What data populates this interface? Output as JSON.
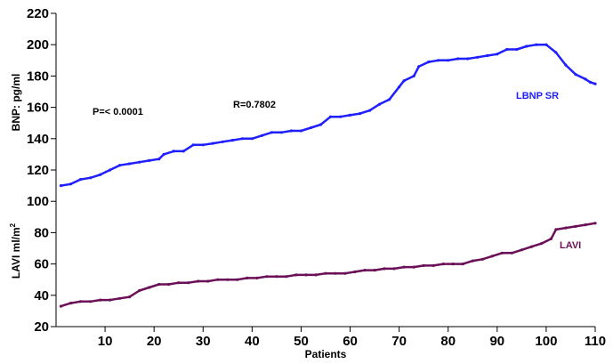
{
  "chart_data": {
    "type": "line",
    "xlabel": "Patients",
    "ylabel_upper": "BNP: pg/ml",
    "ylabel_lower_main": "LAVI ml/m",
    "ylabel_lower_sup": "2",
    "xlim": [
      0,
      110
    ],
    "ylim": [
      20,
      220
    ],
    "x_ticks": [
      10,
      20,
      30,
      40,
      50,
      60,
      70,
      80,
      90,
      100,
      110
    ],
    "y_ticks": [
      20,
      40,
      60,
      80,
      100,
      120,
      140,
      160,
      180,
      200,
      220
    ],
    "grid": false,
    "annotations": {
      "p_value": "P=< 0.0001",
      "r_value": "R=0.7802"
    },
    "series": [
      {
        "name": "LBNP SR",
        "color": "#1f1fff",
        "points": [
          [
            1,
            110
          ],
          [
            3,
            111
          ],
          [
            5,
            114
          ],
          [
            7,
            115
          ],
          [
            9,
            117
          ],
          [
            11,
            120
          ],
          [
            13,
            123
          ],
          [
            15,
            124
          ],
          [
            17,
            125
          ],
          [
            19,
            126
          ],
          [
            21,
            127
          ],
          [
            22,
            130
          ],
          [
            24,
            132
          ],
          [
            26,
            132
          ],
          [
            28,
            136
          ],
          [
            30,
            136
          ],
          [
            32,
            137
          ],
          [
            34,
            138
          ],
          [
            36,
            139
          ],
          [
            38,
            140
          ],
          [
            40,
            140
          ],
          [
            42,
            142
          ],
          [
            44,
            144
          ],
          [
            46,
            144
          ],
          [
            48,
            145
          ],
          [
            50,
            145
          ],
          [
            52,
            147
          ],
          [
            54,
            149
          ],
          [
            56,
            154
          ],
          [
            58,
            154
          ],
          [
            60,
            155
          ],
          [
            62,
            156
          ],
          [
            64,
            158
          ],
          [
            66,
            162
          ],
          [
            68,
            165
          ],
          [
            70,
            173
          ],
          [
            71,
            177
          ],
          [
            73,
            180
          ],
          [
            74,
            186
          ],
          [
            76,
            189
          ],
          [
            78,
            190
          ],
          [
            80,
            190
          ],
          [
            82,
            191
          ],
          [
            84,
            191
          ],
          [
            86,
            192
          ],
          [
            88,
            193
          ],
          [
            90,
            194
          ],
          [
            92,
            197
          ],
          [
            94,
            197
          ],
          [
            96,
            199
          ],
          [
            98,
            200
          ],
          [
            100,
            200
          ],
          [
            102,
            195
          ],
          [
            104,
            187
          ],
          [
            106,
            181
          ],
          [
            108,
            178
          ],
          [
            109,
            176
          ],
          [
            110,
            175
          ]
        ]
      },
      {
        "name": "LAVI",
        "color": "#6b0f57",
        "points": [
          [
            1,
            33
          ],
          [
            3,
            35
          ],
          [
            5,
            36
          ],
          [
            7,
            36
          ],
          [
            9,
            37
          ],
          [
            11,
            37
          ],
          [
            13,
            38
          ],
          [
            15,
            39
          ],
          [
            17,
            43
          ],
          [
            19,
            45
          ],
          [
            21,
            47
          ],
          [
            23,
            47
          ],
          [
            25,
            48
          ],
          [
            27,
            48
          ],
          [
            29,
            49
          ],
          [
            31,
            49
          ],
          [
            33,
            50
          ],
          [
            35,
            50
          ],
          [
            37,
            50
          ],
          [
            39,
            51
          ],
          [
            41,
            51
          ],
          [
            43,
            52
          ],
          [
            45,
            52
          ],
          [
            47,
            52
          ],
          [
            49,
            53
          ],
          [
            51,
            53
          ],
          [
            53,
            53
          ],
          [
            55,
            54
          ],
          [
            57,
            54
          ],
          [
            59,
            54
          ],
          [
            61,
            55
          ],
          [
            63,
            56
          ],
          [
            65,
            56
          ],
          [
            67,
            57
          ],
          [
            69,
            57
          ],
          [
            71,
            58
          ],
          [
            73,
            58
          ],
          [
            75,
            59
          ],
          [
            77,
            59
          ],
          [
            79,
            60
          ],
          [
            81,
            60
          ],
          [
            83,
            60
          ],
          [
            85,
            62
          ],
          [
            87,
            63
          ],
          [
            89,
            65
          ],
          [
            91,
            67
          ],
          [
            93,
            67
          ],
          [
            95,
            69
          ],
          [
            97,
            71
          ],
          [
            99,
            73
          ],
          [
            101,
            76
          ],
          [
            102,
            82
          ],
          [
            104,
            83
          ],
          [
            106,
            84
          ],
          [
            108,
            85
          ],
          [
            110,
            86
          ]
        ]
      }
    ]
  }
}
